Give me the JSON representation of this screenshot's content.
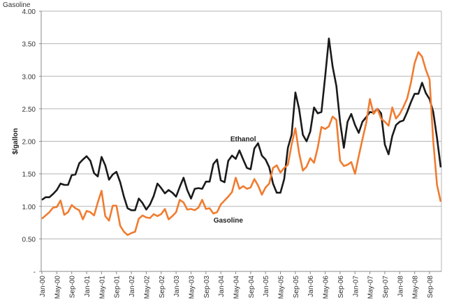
{
  "chart_data": {
    "type": "line",
    "title": "Gasoline",
    "xlabel": "",
    "ylabel": "$/gallon",
    "ylim": [
      0,
      4
    ],
    "yticks": [
      0,
      0.5,
      1,
      1.5,
      2,
      2.5,
      3,
      3.5,
      4
    ],
    "ytick_labels": [
      "-",
      "0.50",
      "1.00",
      "1.50",
      "2.00",
      "2.50",
      "3.00",
      "3.50",
      "4.00"
    ],
    "grid": true,
    "x_start": "Jan-00",
    "x_months": 108,
    "xtick_labels": [
      "Jan-00",
      "May-00",
      "Sep-00",
      "Jan-01",
      "May-01",
      "Sep-01",
      "Jan-02",
      "May-02",
      "Sep-02",
      "Jan-03",
      "May-03",
      "Sep-03",
      "Jan-04",
      "May-04",
      "Sep-04",
      "Jan-05",
      "May-05",
      "Sep-05",
      "Jan-06",
      "May-06",
      "Sep-06",
      "Jan-07",
      "May-07",
      "Sep-07",
      "Jan-08",
      "May-08",
      "Sep-08"
    ],
    "series": [
      {
        "name": "Ethanol",
        "color": "#1a1a1a",
        "label_at_month": 54,
        "label_value": 2.0,
        "values": [
          1.1,
          1.14,
          1.14,
          1.19,
          1.25,
          1.35,
          1.33,
          1.33,
          1.48,
          1.49,
          1.66,
          1.72,
          1.77,
          1.7,
          1.51,
          1.46,
          1.76,
          1.63,
          1.41,
          1.49,
          1.53,
          1.37,
          1.15,
          0.97,
          0.94,
          0.94,
          1.12,
          1.05,
          0.95,
          1.03,
          1.16,
          1.35,
          1.28,
          1.2,
          1.25,
          1.21,
          1.15,
          1.3,
          1.44,
          1.25,
          1.12,
          1.27,
          1.28,
          1.27,
          1.38,
          1.38,
          1.65,
          1.72,
          1.4,
          1.37,
          1.7,
          1.78,
          1.73,
          1.86,
          1.72,
          1.59,
          1.57,
          1.89,
          1.97,
          1.78,
          1.72,
          1.6,
          1.35,
          1.21,
          1.21,
          1.42,
          1.9,
          2.1,
          2.75,
          2.5,
          2.1,
          2.0,
          2.15,
          2.52,
          2.43,
          2.45,
          3.0,
          3.58,
          3.15,
          2.85,
          2.3,
          1.9,
          2.3,
          2.42,
          2.25,
          2.13,
          2.3,
          2.37,
          2.45,
          2.44,
          2.5,
          2.43,
          1.95,
          1.8,
          2.08,
          2.25,
          2.3,
          2.32,
          2.45,
          2.6,
          2.73,
          2.73,
          2.9,
          2.74,
          2.65,
          2.45,
          2.05,
          1.6
        ]
      },
      {
        "name": "Gasoline",
        "color": "#f07c30",
        "label_at_month": 50,
        "label_value": 0.75,
        "values": [
          0.81,
          0.86,
          0.91,
          0.98,
          0.99,
          1.09,
          0.87,
          0.91,
          1.02,
          0.97,
          0.94,
          0.8,
          0.93,
          0.91,
          0.86,
          1.06,
          1.24,
          0.85,
          0.78,
          1.01,
          1.01,
          0.7,
          0.61,
          0.56,
          0.59,
          0.61,
          0.81,
          0.86,
          0.83,
          0.82,
          0.88,
          0.85,
          0.88,
          0.96,
          0.8,
          0.85,
          0.91,
          1.1,
          1.06,
          0.95,
          0.96,
          0.94,
          0.98,
          1.1,
          0.96,
          0.97,
          0.89,
          0.91,
          1.03,
          1.09,
          1.15,
          1.22,
          1.44,
          1.27,
          1.31,
          1.27,
          1.29,
          1.42,
          1.32,
          1.18,
          1.29,
          1.35,
          1.59,
          1.63,
          1.52,
          1.59,
          1.64,
          1.95,
          2.2,
          1.82,
          1.55,
          1.61,
          1.74,
          1.67,
          1.9,
          2.22,
          2.19,
          2.23,
          2.38,
          2.33,
          1.7,
          1.62,
          1.64,
          1.68,
          1.5,
          1.77,
          2.03,
          2.28,
          2.65,
          2.42,
          2.5,
          2.35,
          2.3,
          2.24,
          2.52,
          2.35,
          2.42,
          2.53,
          2.66,
          2.9,
          3.2,
          3.37,
          3.3,
          3.1,
          2.95,
          2.0,
          1.33,
          1.07
        ]
      }
    ]
  }
}
